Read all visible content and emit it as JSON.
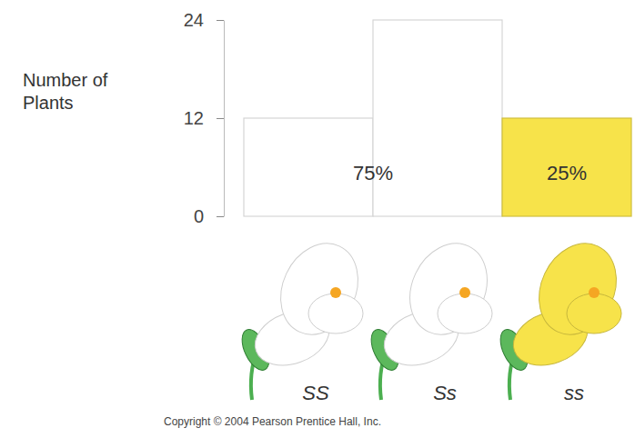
{
  "chart_data": {
    "type": "bar",
    "y_label": "Number of Plants",
    "categories": [
      "SS",
      "Ss",
      "ss"
    ],
    "values": [
      12,
      24,
      12
    ],
    "colors": [
      "#ffffff",
      "#ffffff",
      "#f7e34a"
    ],
    "ylim": [
      0,
      24
    ],
    "yticks": [
      0,
      12,
      24
    ],
    "grid": false,
    "annotations": [
      {
        "text": "75%",
        "categories": [
          "SS",
          "Ss"
        ]
      },
      {
        "text": "25%",
        "categories": [
          "ss"
        ]
      }
    ],
    "footnote": "Copyright © 2004 Pearson Prentice Hall, Inc."
  }
}
